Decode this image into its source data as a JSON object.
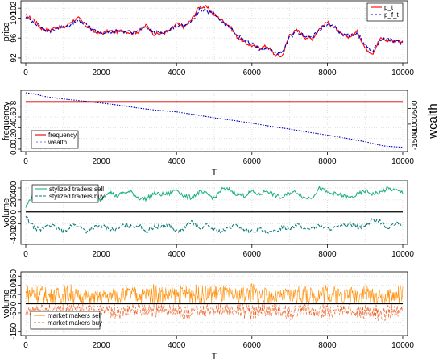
{
  "colors": {
    "p_t": "#ff0000",
    "p_f_t": "#0000cc",
    "frequency": "#dd0000",
    "wealth": "#0000bb",
    "stylized_sell": "#21b27f",
    "stylized_buy": "#0e7c7b",
    "mm_sell": "#ff8c00",
    "mm_buy": "#ee5a1a",
    "grid": "#d9d9d9",
    "axis": "#000000"
  },
  "chart_data": [
    {
      "type": "line",
      "panel": "price",
      "xlabel": "",
      "ylabel": "price",
      "xlim": [
        0,
        10000
      ],
      "ylim": [
        91.5,
        103
      ],
      "xticks": [
        "0",
        "2000",
        "4000",
        "6000",
        "8000",
        "10000"
      ],
      "yticks": [
        "92",
        "96",
        "100",
        "102"
      ],
      "legend": {
        "position": "top-right",
        "entries": [
          "p_t",
          "p_f_t"
        ]
      },
      "grid": true,
      "series": [
        {
          "name": "p_t",
          "style": "solid",
          "x": [
            0,
            200,
            400,
            600,
            800,
            1000,
            1200,
            1400,
            1600,
            1800,
            2000,
            2200,
            2400,
            2600,
            2800,
            3000,
            3200,
            3400,
            3600,
            3800,
            4000,
            4200,
            4400,
            4600,
            4800,
            5000,
            5200,
            5400,
            5600,
            5800,
            6000,
            6200,
            6400,
            6600,
            6800,
            7000,
            7200,
            7400,
            7600,
            7800,
            8000,
            8200,
            8400,
            8600,
            8800,
            9000,
            9200,
            9400,
            9600,
            9800,
            10000
          ],
          "values": [
            100.5,
            99.8,
            98.0,
            97.5,
            98.2,
            98.0,
            99.3,
            100.0,
            98.5,
            97.3,
            96.9,
            97.4,
            97.3,
            97.5,
            97.0,
            97.3,
            98.6,
            96.8,
            96.9,
            97.3,
            98.9,
            98.2,
            99.7,
            102.3,
            102.2,
            100.7,
            99.6,
            98.5,
            96.3,
            95.1,
            94.5,
            94.0,
            94.4,
            92.7,
            92.3,
            96.7,
            97.6,
            96.2,
            95.8,
            98.0,
            99.2,
            98.0,
            96.4,
            96.3,
            97.3,
            94.0,
            92.9,
            95.9,
            95.5,
            95.5,
            95.3
          ]
        },
        {
          "name": "p_f_t",
          "style": "dashed",
          "x": [
            0,
            200,
            400,
            600,
            800,
            1000,
            1200,
            1400,
            1600,
            1800,
            2000,
            2200,
            2400,
            2600,
            2800,
            3000,
            3200,
            3400,
            3600,
            3800,
            4000,
            4200,
            4400,
            4600,
            4800,
            5000,
            5200,
            5400,
            5600,
            5800,
            6000,
            6200,
            6400,
            6600,
            6800,
            7000,
            7200,
            7400,
            7600,
            7800,
            8000,
            8200,
            8400,
            8600,
            8800,
            9000,
            9200,
            9400,
            9600,
            9800,
            10000
          ],
          "values": [
            100.2,
            99.3,
            98.3,
            97.2,
            97.9,
            98.4,
            98.8,
            99.4,
            98.7,
            97.6,
            97.0,
            97.1,
            97.4,
            97.3,
            97.2,
            97.6,
            98.1,
            97.2,
            97.1,
            97.7,
            98.4,
            98.6,
            99.2,
            101.7,
            101.3,
            100.9,
            99.3,
            98.2,
            96.6,
            95.6,
            94.8,
            93.7,
            94.0,
            93.2,
            92.8,
            96.2,
            97.2,
            96.5,
            96.1,
            97.8,
            98.6,
            98.2,
            96.6,
            96.6,
            96.9,
            94.6,
            93.4,
            95.6,
            95.9,
            95.3,
            95.0
          ]
        }
      ]
    },
    {
      "type": "line",
      "panel": "frequency",
      "xlabel": "T",
      "ylabel": "frequency",
      "y2label": "wealth",
      "xlim": [
        0,
        10000
      ],
      "ylim": [
        0,
        1.05
      ],
      "y2lim": [
        -1800,
        0
      ],
      "xticks": [
        "0",
        "2000",
        "4000",
        "6000",
        "8000",
        "10000"
      ],
      "yticks": [
        "0.0",
        "0.2",
        "0.4",
        "0.6",
        "0.8"
      ],
      "y2ticks": [
        "-500",
        "-1000",
        "-1500"
      ],
      "legend": {
        "position": "bottom-left",
        "entries": [
          "frequency",
          "wealth"
        ]
      },
      "grid": true,
      "series": [
        {
          "name": "frequency",
          "axis": "left",
          "style": "solid",
          "x": [
            0,
            10000
          ],
          "values": [
            0.88,
            0.88
          ]
        },
        {
          "name": "wealth",
          "axis": "right",
          "style": "dotted",
          "x": [
            0,
            250,
            500,
            1000,
            1500,
            2000,
            2500,
            3000,
            3500,
            4000,
            4500,
            5000,
            5500,
            6000,
            6500,
            7000,
            7500,
            8000,
            8500,
            9000,
            9500,
            10000
          ],
          "values": [
            0,
            -40,
            -120,
            -200,
            -260,
            -330,
            -400,
            -490,
            -560,
            -610,
            -700,
            -800,
            -880,
            -970,
            -1070,
            -1160,
            -1260,
            -1350,
            -1450,
            -1560,
            -1700,
            -1740
          ]
        }
      ]
    },
    {
      "type": "line",
      "panel": "stylized traders volume",
      "xlabel": "",
      "ylabel": "volume",
      "xlim": [
        0,
        10000
      ],
      "ylim": [
        -500,
        480
      ],
      "xticks": [
        "0",
        "2000",
        "4000",
        "6000",
        "8000",
        "10000"
      ],
      "yticks": [
        "-400",
        "-200",
        "0",
        "200",
        "400"
      ],
      "legend": {
        "position": "top-left",
        "entries": [
          "stylized traders sell",
          "stylized traders buy"
        ]
      },
      "grid": true,
      "series": [
        {
          "name": "stylized traders sell",
          "style": "solid",
          "x": [
            0,
            200,
            400,
            600,
            800,
            1000,
            1200,
            1400,
            1600,
            1800,
            2000,
            2200,
            2400,
            2600,
            2800,
            3000,
            3200,
            3400,
            3600,
            3800,
            4000,
            4200,
            4400,
            4600,
            4800,
            5000,
            5200,
            5400,
            5600,
            5800,
            6000,
            6200,
            6400,
            6600,
            6800,
            7000,
            7200,
            7400,
            7600,
            7800,
            8000,
            8200,
            8400,
            8600,
            8800,
            9000,
            9200,
            9400,
            9600,
            9800,
            10000
          ],
          "values": [
            80,
            300,
            240,
            300,
            200,
            330,
            290,
            360,
            250,
            200,
            210,
            350,
            260,
            320,
            330,
            230,
            220,
            310,
            290,
            300,
            380,
            260,
            240,
            330,
            300,
            230,
            380,
            370,
            300,
            270,
            340,
            290,
            360,
            280,
            230,
            320,
            330,
            230,
            250,
            400,
            320,
            300,
            270,
            230,
            290,
            350,
            300,
            320,
            390,
            360,
            330
          ]
        },
        {
          "name": "stylized traders buy",
          "style": "dashed",
          "x": [
            0,
            200,
            400,
            600,
            800,
            1000,
            1200,
            1400,
            1600,
            1800,
            2000,
            2200,
            2400,
            2600,
            2800,
            3000,
            3200,
            3400,
            3600,
            3800,
            4000,
            4200,
            4400,
            4600,
            4800,
            5000,
            5200,
            5400,
            5600,
            5800,
            6000,
            6200,
            6400,
            6600,
            6800,
            7000,
            7200,
            7400,
            7600,
            7800,
            8000,
            8200,
            8400,
            8600,
            8800,
            9000,
            9200,
            9400,
            9600,
            9800,
            10000
          ],
          "values": [
            -80,
            -250,
            -300,
            -200,
            -260,
            -340,
            -220,
            -230,
            -320,
            -260,
            -230,
            -280,
            -300,
            -220,
            -250,
            -210,
            -330,
            -250,
            -240,
            -220,
            -330,
            -280,
            -150,
            -280,
            -220,
            -300,
            -330,
            -260,
            -220,
            -300,
            -330,
            -280,
            -360,
            -330,
            -250,
            -270,
            -200,
            -290,
            -260,
            -230,
            -280,
            -260,
            -240,
            -190,
            -260,
            -220,
            -130,
            -160,
            -280,
            -200,
            -210
          ]
        }
      ]
    },
    {
      "type": "line",
      "panel": "market makers volume",
      "xlabel": "T",
      "ylabel": "volume",
      "xlim": [
        0,
        10000
      ],
      "ylim": [
        -160,
        160
      ],
      "xticks": [
        "0",
        "2000",
        "4000",
        "6000",
        "8000",
        "10000"
      ],
      "yticks": [
        "-150",
        "-50",
        "0",
        "50",
        "100",
        "150"
      ],
      "legend": {
        "position": "bottom-left",
        "entries": [
          "market makers sell",
          "market makers buy"
        ]
      },
      "grid": true,
      "series": [
        {
          "name": "market makers sell",
          "style": "solid",
          "x": [
            0,
            200,
            400,
            600,
            800,
            1000,
            1200,
            1400,
            1600,
            1800,
            2000,
            2200,
            2400,
            2600,
            2800,
            3000,
            3200,
            3400,
            3600,
            3800,
            4000,
            4200,
            4400,
            4600,
            4800,
            5000,
            5200,
            5400,
            5600,
            5800,
            6000,
            6200,
            6400,
            6600,
            6800,
            7000,
            7200,
            7400,
            7600,
            7800,
            8000,
            8200,
            8400,
            8600,
            8800,
            9000,
            9200,
            9400,
            9600,
            9800,
            10000
          ],
          "values": [
            100,
            120,
            105,
            85,
            90,
            95,
            110,
            80,
            80,
            70,
            75,
            85,
            90,
            95,
            100,
            85,
            100,
            110,
            105,
            90,
            95,
            100,
            120,
            95,
            100,
            105,
            110,
            90,
            85,
            100,
            120,
            95,
            85,
            70,
            80,
            90,
            95,
            100,
            85,
            110,
            115,
            100,
            90,
            95,
            105,
            115,
            85,
            80,
            75,
            95,
            110
          ]
        },
        {
          "name": "market makers buy",
          "style": "dashed",
          "x": [
            0,
            200,
            400,
            600,
            800,
            1000,
            1200,
            1400,
            1600,
            1800,
            2000,
            2200,
            2400,
            2600,
            2800,
            3000,
            3200,
            3400,
            3600,
            3800,
            4000,
            4200,
            4400,
            4600,
            4800,
            5000,
            5200,
            5400,
            5600,
            5800,
            6000,
            6200,
            6400,
            6600,
            6800,
            7000,
            7200,
            7400,
            7600,
            7800,
            8000,
            8200,
            8400,
            8600,
            8800,
            9000,
            9200,
            9400,
            9600,
            9800,
            10000
          ],
          "values": [
            -70,
            -60,
            -65,
            -80,
            -70,
            -60,
            -75,
            -70,
            -65,
            -55,
            -60,
            -80,
            -95,
            -70,
            -60,
            -65,
            -70,
            -80,
            -65,
            -60,
            -70,
            -90,
            -75,
            -65,
            -70,
            -80,
            -70,
            -60,
            -65,
            -85,
            -90,
            -70,
            -75,
            -65,
            -75,
            -100,
            -80,
            -60,
            -70,
            -75,
            -90,
            -80,
            -70,
            -65,
            -75,
            -80,
            -70,
            -110,
            -90,
            -80,
            -70
          ]
        }
      ]
    }
  ]
}
